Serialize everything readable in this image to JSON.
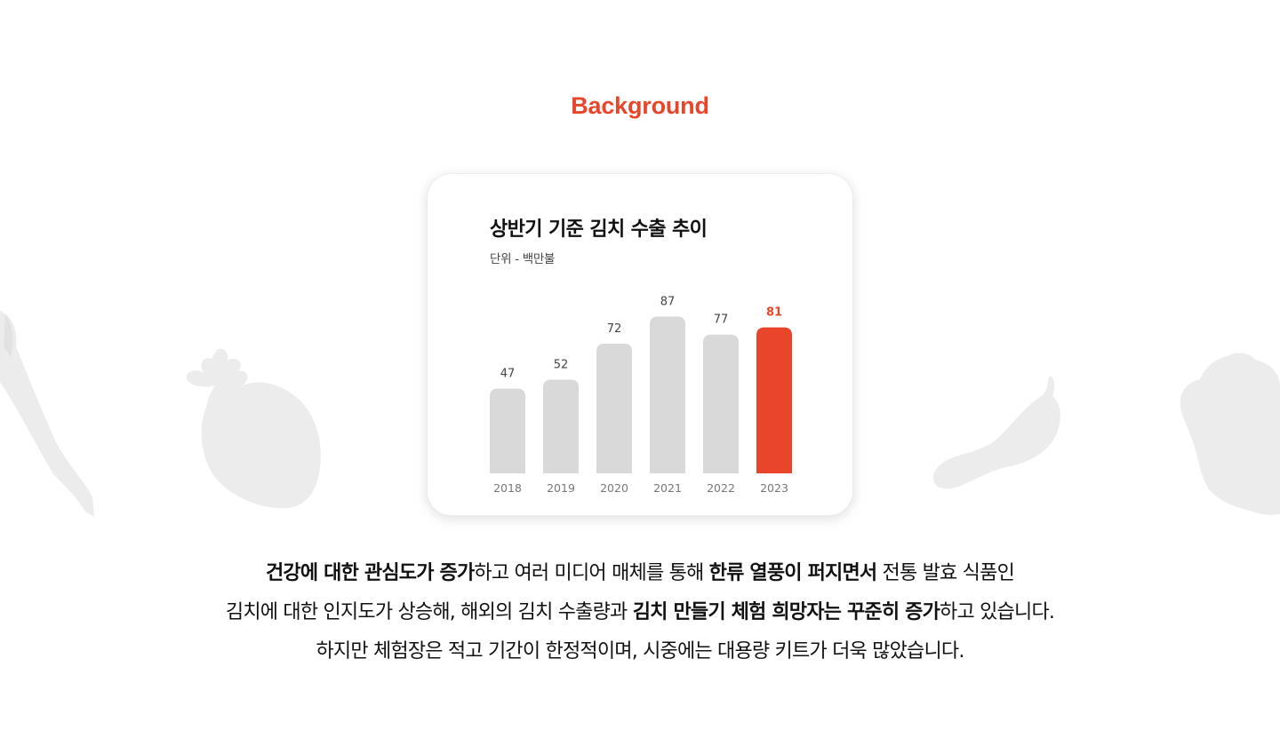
{
  "colors": {
    "accent": "#e8452a",
    "bar_default": "#d9d9d9",
    "decoration": "#ececec"
  },
  "heading": "Background",
  "decorations": [
    "green-onion-icon",
    "radish-icon",
    "chili-pepper-icon",
    "napa-cabbage-icon"
  ],
  "chart_data": {
    "type": "bar",
    "title": "상반기 기준 김치 수출 추이",
    "subtitle": "단위 - 백만불",
    "categories": [
      "2018",
      "2019",
      "2020",
      "2021",
      "2022",
      "2023"
    ],
    "values": [
      47,
      52,
      72,
      87,
      77,
      81
    ],
    "highlight": "2023",
    "xlabel": "",
    "ylabel": "",
    "grid": false,
    "legend": "none"
  },
  "description": {
    "line1": [
      {
        "text": "건강에 대한 관심도가 증가",
        "bold": true
      },
      {
        "text": "하고 여러 미디어 매체를 통해 ",
        "bold": false
      },
      {
        "text": "한류 열풍이 퍼지면서",
        "bold": true
      },
      {
        "text": " 전통 발효 식품인",
        "bold": false
      }
    ],
    "line2": [
      {
        "text": "김치에 대한 인지도가 상승해, 해외의 김치 수출량과 ",
        "bold": false
      },
      {
        "text": "김치 만들기 체험 희망자는 꾸준히 증가",
        "bold": true
      },
      {
        "text": "하고 있습니다.",
        "bold": false
      }
    ],
    "line3": [
      {
        "text": "하지만 체험장은 적고 기간이 한정적이며, 시중에는 대용량 키트가 더욱 많았습니다.",
        "bold": false
      }
    ]
  }
}
